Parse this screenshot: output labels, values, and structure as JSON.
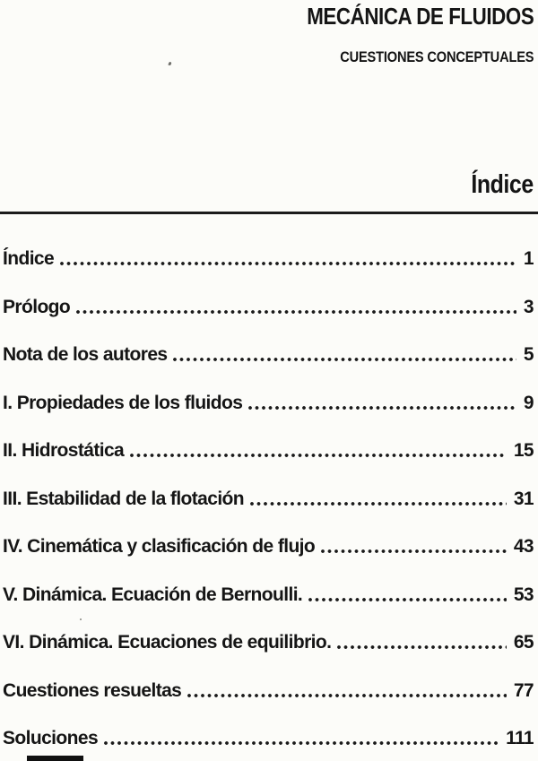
{
  "header": {
    "title": "MECÁNICA DE FLUIDOS",
    "subtitle": "CUESTIONES CONCEPTUALES"
  },
  "section_heading": "Índice",
  "toc": {
    "entries": [
      {
        "label": "Índice",
        "page": "1"
      },
      {
        "label": "Prólogo",
        "page": "3"
      },
      {
        "label": "Nota de los autores",
        "page": "5"
      },
      {
        "label": "I. Propiedades de los fluidos",
        "page": "9"
      },
      {
        "label": "II. Hidrostática",
        "page": "15"
      },
      {
        "label": "III. Estabilidad de la flotación",
        "page": "31"
      },
      {
        "label": "IV. Cinemática y clasificación de flujo",
        "page": "43"
      },
      {
        "label": "V. Dinámica. Ecuación de Bernoulli.",
        "page": "53"
      },
      {
        "label": "VI. Dinámica. Ecuaciones de equilibrio.",
        "page": "65"
      },
      {
        "label": "Cuestiones resueltas",
        "page": "77"
      },
      {
        "label": "Soluciones",
        "page": "111"
      }
    ]
  },
  "colors": {
    "ink": "#151515",
    "background": "#fcfcf9",
    "rule": "#1b1b1b"
  }
}
